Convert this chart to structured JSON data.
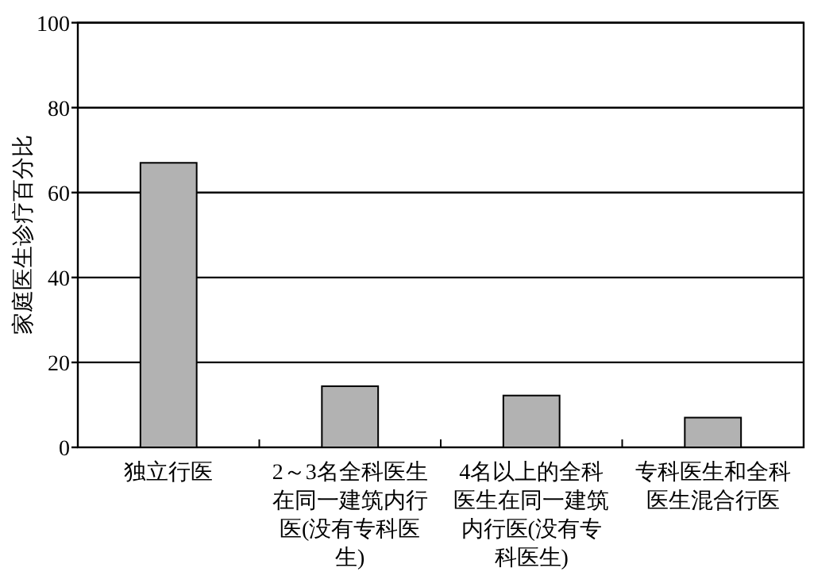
{
  "chart_data": {
    "type": "bar",
    "ylabel": "家庭医生诊疗百分比",
    "categories": [
      "独立行医",
      "2～3名全科医生在同一建筑内行医(没有专科医生)",
      "4名以上的全科医生在同一建筑内行医(没有专科医生)",
      "专科医生和全科医生混合行医"
    ],
    "values": [
      67,
      14.4,
      12.2,
      7
    ],
    "color": "#b2b2b2",
    "ylim": [
      0,
      100
    ],
    "yticks": [
      0,
      20,
      40,
      60,
      80,
      100
    ],
    "grid": "y"
  }
}
